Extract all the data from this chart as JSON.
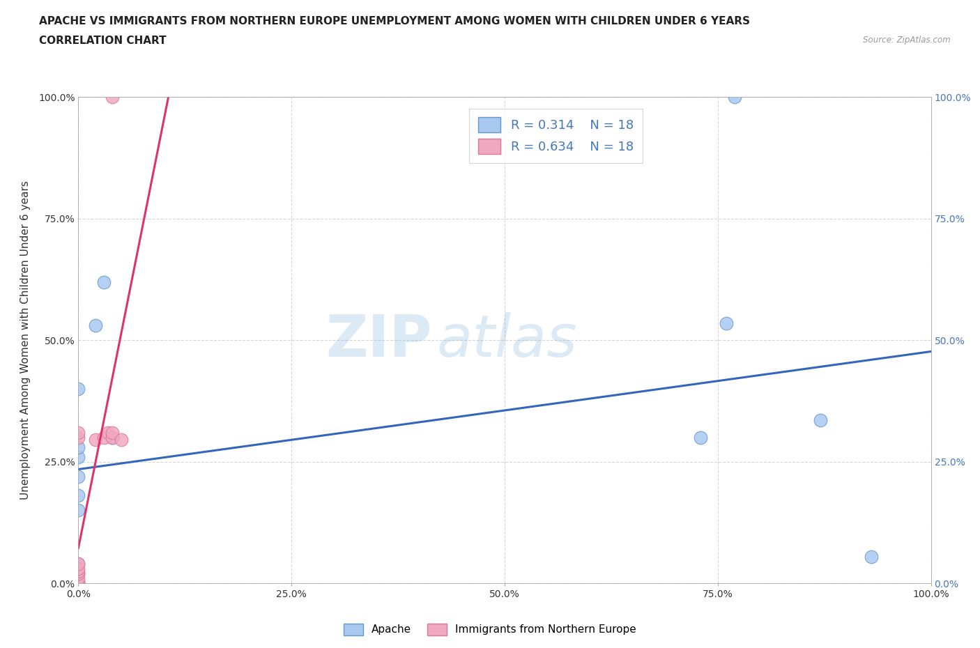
{
  "title_line1": "APACHE VS IMMIGRANTS FROM NORTHERN EUROPE UNEMPLOYMENT AMONG WOMEN WITH CHILDREN UNDER 6 YEARS",
  "title_line2": "CORRELATION CHART",
  "source": "Source: ZipAtlas.com",
  "xlabel": "",
  "ylabel": "Unemployment Among Women with Children Under 6 years",
  "xlim": [
    0.0,
    1.0
  ],
  "ylim": [
    0.0,
    1.0
  ],
  "xtick_labels": [
    "0.0%",
    "25.0%",
    "50.0%",
    "75.0%",
    "100.0%"
  ],
  "xtick_vals": [
    0.0,
    0.25,
    0.5,
    0.75,
    1.0
  ],
  "ytick_labels": [
    "0.0%",
    "25.0%",
    "50.0%",
    "75.0%",
    "100.0%"
  ],
  "ytick_vals": [
    0.0,
    0.25,
    0.5,
    0.75,
    1.0
  ],
  "right_ytick_labels": [
    "0.0%",
    "25.0%",
    "50.0%",
    "75.0%",
    "100.0%"
  ],
  "right_ytick_vals": [
    0.0,
    0.25,
    0.5,
    0.75,
    1.0
  ],
  "apache_x": [
    0.0,
    0.0,
    0.0,
    0.0,
    0.0,
    0.0,
    0.0,
    0.0,
    0.0,
    0.0,
    0.02,
    0.03,
    0.04,
    0.73,
    0.76,
    0.77,
    0.87,
    0.93
  ],
  "apache_y": [
    0.0,
    0.0,
    0.02,
    0.04,
    0.15,
    0.18,
    0.22,
    0.26,
    0.28,
    0.4,
    0.53,
    0.62,
    0.3,
    0.3,
    0.535,
    1.0,
    0.335,
    0.055
  ],
  "immig_x": [
    0.0,
    0.0,
    0.0,
    0.0,
    0.0,
    0.0,
    0.0,
    0.0,
    0.0,
    0.0,
    0.0,
    0.02,
    0.03,
    0.035,
    0.04,
    0.04,
    0.04,
    0.05
  ],
  "immig_y": [
    0.0,
    0.0,
    0.0,
    0.005,
    0.01,
    0.02,
    0.025,
    0.03,
    0.04,
    0.3,
    0.31,
    0.295,
    0.3,
    0.31,
    0.3,
    0.31,
    1.0,
    0.295
  ],
  "apache_color": "#a8c8f0",
  "apache_edge_color": "#6699cc",
  "immig_color": "#f0a8c0",
  "immig_edge_color": "#dd7799",
  "apache_line_color": "#3366bb",
  "immig_line_color": "#dd3366",
  "R_apache": 0.314,
  "N_apache": 18,
  "R_immig": 0.634,
  "N_immig": 18,
  "watermark_zip": "ZIP",
  "watermark_atlas": "atlas",
  "legend_apache": "Apache",
  "legend_immig": "Immigrants from Northern Europe",
  "marker_size": 180,
  "background_color": "#ffffff",
  "grid_color": "#cccccc",
  "right_tick_color": "#4477bb"
}
